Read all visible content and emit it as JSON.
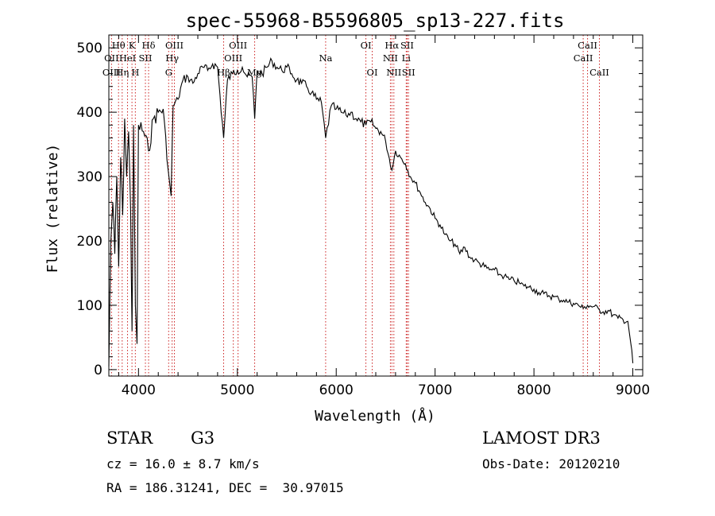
{
  "chart_data": {
    "type": "line",
    "title": "spec-55968-B5596805_sp13-227.fits",
    "xlabel": "Wavelength (Å)",
    "ylabel": "Flux (relative)",
    "xlim": [
      3700,
      9100
    ],
    "ylim": [
      -10,
      520
    ],
    "x_ticks": [
      4000,
      5000,
      6000,
      7000,
      8000,
      9000
    ],
    "y_ticks": [
      0,
      100,
      200,
      300,
      400,
      500
    ],
    "grid": false,
    "series": [
      {
        "name": "flux",
        "x": [
          3700,
          3720,
          3740,
          3760,
          3780,
          3800,
          3820,
          3840,
          3860,
          3880,
          3900,
          3920,
          3935,
          3950,
          3968,
          3985,
          4000,
          4050,
          4101,
          4150,
          4200,
          4250,
          4300,
          4330,
          4350,
          4400,
          4450,
          4500,
          4550,
          4600,
          4650,
          4700,
          4750,
          4800,
          4861,
          4900,
          4950,
          5000,
          5050,
          5100,
          5150,
          5175,
          5200,
          5250,
          5300,
          5350,
          5400,
          5450,
          5500,
          5550,
          5600,
          5650,
          5700,
          5750,
          5800,
          5850,
          5893,
          5950,
          6000,
          6050,
          6100,
          6150,
          6200,
          6250,
          6300,
          6350,
          6400,
          6450,
          6500,
          6563,
          6600,
          6650,
          6700,
          6750,
          6800,
          6850,
          6900,
          6950,
          7000,
          7050,
          7100,
          7150,
          7200,
          7250,
          7300,
          7350,
          7400,
          7450,
          7500,
          7550,
          7600,
          7650,
          7700,
          7750,
          7800,
          7850,
          7900,
          7950,
          8000,
          8050,
          8100,
          8150,
          8200,
          8250,
          8300,
          8350,
          8400,
          8450,
          8498,
          8542,
          8600,
          8662,
          8700,
          8750,
          8800,
          8850,
          8900,
          8950,
          8980,
          9000
        ],
        "y": [
          5,
          200,
          260,
          180,
          300,
          160,
          330,
          240,
          390,
          300,
          370,
          250,
          60,
          380,
          100,
          40,
          380,
          370,
          340,
          390,
          400,
          405,
          310,
          270,
          410,
          420,
          450,
          455,
          445,
          460,
          470,
          465,
          475,
          470,
          360,
          450,
          460,
          465,
          470,
          455,
          455,
          390,
          465,
          460,
          470,
          480,
          470,
          465,
          470,
          460,
          450,
          445,
          440,
          430,
          420,
          415,
          360,
          410,
          405,
          400,
          395,
          400,
          390,
          385,
          380,
          385,
          375,
          370,
          355,
          310,
          340,
          330,
          320,
          300,
          290,
          275,
          260,
          250,
          235,
          225,
          210,
          200,
          195,
          180,
          190,
          175,
          170,
          165,
          160,
          155,
          155,
          148,
          145,
          140,
          138,
          135,
          130,
          128,
          125,
          120,
          118,
          115,
          113,
          110,
          108,
          105,
          103,
          100,
          95,
          100,
          98,
          93,
          90,
          92,
          85,
          80,
          78,
          75,
          40,
          10
        ]
      }
    ],
    "spectral_lines": [
      {
        "label": "Hθ",
        "x": 3798,
        "row": 1
      },
      {
        "label": "OII",
        "x": 3727,
        "row": 2
      },
      {
        "label": "OIII",
        "x": 3727,
        "row": 3
      },
      {
        "label": "K",
        "x": 3934,
        "row": 1
      },
      {
        "label": "HeI",
        "x": 3889,
        "row": 2
      },
      {
        "label": "Hη",
        "x": 3835,
        "row": 3
      },
      {
        "label": "Hδ",
        "x": 4102,
        "row": 1
      },
      {
        "label": "SII",
        "x": 4070,
        "row": 2
      },
      {
        "label": "H",
        "x": 3968,
        "row": 3
      },
      {
        "label": "OIII",
        "x": 4363,
        "row": 1
      },
      {
        "label": "Hγ",
        "x": 4340,
        "row": 2
      },
      {
        "label": "G",
        "x": 4305,
        "row": 3
      },
      {
        "label": "OIII",
        "x": 5007,
        "row": 1
      },
      {
        "label": "OIII",
        "x": 4959,
        "row": 2
      },
      {
        "label": "Hβ",
        "x": 4861,
        "row": 3
      },
      {
        "label": "Mg",
        "x": 5175,
        "row": 3
      },
      {
        "label": "Na",
        "x": 5893,
        "row": 2
      },
      {
        "label": "OI",
        "x": 6300,
        "row": 1
      },
      {
        "label": "OI",
        "x": 6364,
        "row": 3
      },
      {
        "label": "Hα",
        "x": 6563,
        "row": 1
      },
      {
        "label": "SII",
        "x": 6717,
        "row": 1
      },
      {
        "label": "NII",
        "x": 6548,
        "row": 2
      },
      {
        "label": "Li",
        "x": 6708,
        "row": 2
      },
      {
        "label": "NII",
        "x": 6583,
        "row": 3
      },
      {
        "label": "SII",
        "x": 6731,
        "row": 3
      },
      {
        "label": "CaII",
        "x": 8542,
        "row": 1
      },
      {
        "label": "CaII",
        "x": 8498,
        "row": 2
      },
      {
        "label": "CaII",
        "x": 8662,
        "row": 3
      }
    ]
  },
  "info": {
    "object_class": "STAR",
    "subclass": "G3",
    "survey": "LAMOST DR3",
    "cz": "cz = 16.0 ± 8.7 km/s",
    "obs_date": "Obs-Date: 20120210",
    "coords": "RA = 186.31241, DEC =  30.97015"
  }
}
